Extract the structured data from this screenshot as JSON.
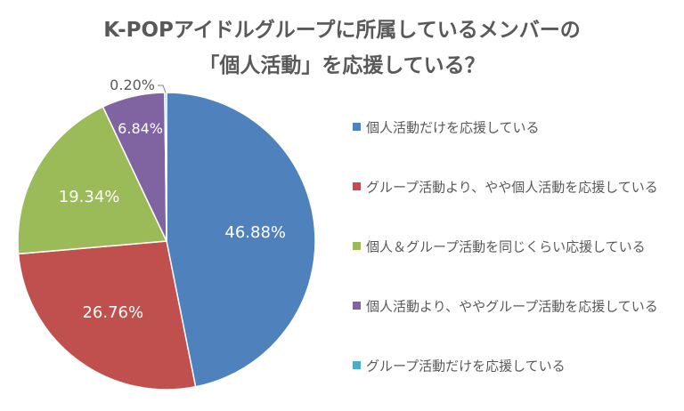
{
  "chart_data": {
    "type": "pie",
    "title_lines": [
      "K-POPアイドルグループに所属しているメンバーの",
      "「個人活動」を応援している？"
    ],
    "slices": [
      {
        "label": "個人活動だけを応援している",
        "value": 46.88,
        "display": "46.88%",
        "color": "#4F81BD"
      },
      {
        "label": "グループ活動より、やや個人活動を応援している",
        "value": 26.76,
        "display": "26.76%",
        "color": "#C0504D"
      },
      {
        "label": "個人＆グループ活動を同じくらい応援している",
        "value": 19.34,
        "display": "19.34%",
        "color": "#9BBB59"
      },
      {
        "label": "個人活動より、ややグループ活動を応援している",
        "value": 6.84,
        "display": "6.84%",
        "color": "#8064A2"
      },
      {
        "label": "グループ活動だけを応援している",
        "value": 0.2,
        "display": "0.20%",
        "color": "#4BACC6"
      }
    ],
    "legend_position": "right",
    "start_angle": "top",
    "direction": "clockwise"
  },
  "colors": {
    "title": "#595959",
    "label_dark": "#595959",
    "label_light": "#FFFFFF"
  }
}
